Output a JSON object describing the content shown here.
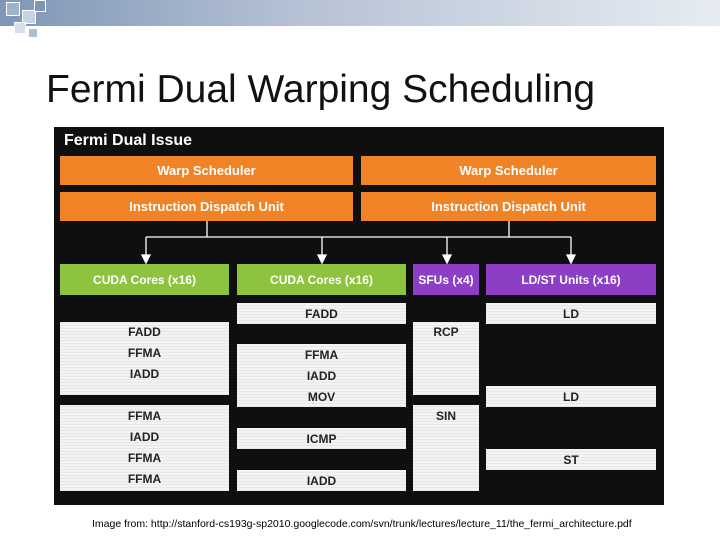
{
  "slide": {
    "title": "Fermi Dual Warping Scheduling",
    "caption": "Image from: http://stanford-cs193g-sp2010.googlecode.com/svn/trunk/lectures/lecture_11/the_fermi_architecture.pdf"
  },
  "diagram": {
    "title": "Fermi Dual Issue",
    "schedulers": [
      "Warp Scheduler",
      "Warp Scheduler"
    ],
    "dispatch_units": [
      "Instruction Dispatch Unit",
      "Instruction Dispatch Unit"
    ],
    "units": [
      {
        "label": "CUDA Cores (x16)",
        "color": "#8dc33e"
      },
      {
        "label": "CUDA Cores (x16)",
        "color": "#8dc33e"
      },
      {
        "label": "SFUs (x4)",
        "color": "#8c3ec5"
      },
      {
        "label": "LD/ST Units (x16)",
        "color": "#8c3ec5"
      }
    ],
    "col1": [
      [
        "FADD",
        "FFMA",
        "IADD"
      ],
      [
        "FFMA",
        "IADD",
        "FFMA",
        "FFMA"
      ]
    ],
    "col2": [
      [
        "FADD"
      ],
      [
        "FFMA",
        "IADD",
        "MOV"
      ],
      [
        "ICMP"
      ],
      [
        "IADD"
      ]
    ],
    "col3": [
      [
        "RCP"
      ],
      [
        "SIN"
      ]
    ],
    "col4": [
      [
        "LD"
      ],
      [
        "LD"
      ],
      [
        "ST"
      ]
    ]
  },
  "colors": {
    "orange": "#f08326",
    "green": "#8dc33e",
    "purple": "#8c3ec5",
    "panel": "#0f0f0f"
  }
}
